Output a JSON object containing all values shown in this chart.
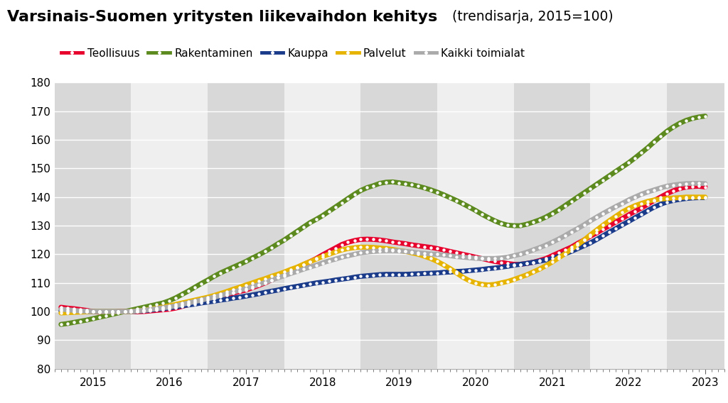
{
  "title_bold": "Varsinais-Suomen yritysten liikevaihdon kehitys",
  "title_normal": " (trendisarja, 2015=100)",
  "legend_labels": [
    "Teollisuus",
    "Rakentaminen",
    "Kauppa",
    "Palvelut",
    "Kaikki toimialat"
  ],
  "line_colors": [
    "#e8002d",
    "#5c8a1e",
    "#1a3a8a",
    "#e6b400",
    "#aaaaaa"
  ],
  "ylim": [
    80,
    180
  ],
  "yticks": [
    80,
    90,
    100,
    110,
    120,
    130,
    140,
    150,
    160,
    170,
    180
  ],
  "bg_color": "#ffffff",
  "stripe_gray": "#d8d8d8",
  "stripe_white": "#efefef",
  "series": {
    "Teollisuus": {
      "x": [
        2014.583,
        2014.667,
        2014.75,
        2014.833,
        2014.917,
        2015.0,
        2015.083,
        2015.167,
        2015.25,
        2015.333,
        2015.417,
        2015.5,
        2015.583,
        2015.667,
        2015.75,
        2015.833,
        2015.917,
        2016.0,
        2016.083,
        2016.167,
        2016.25,
        2016.333,
        2016.417,
        2016.5,
        2016.583,
        2016.667,
        2016.75,
        2016.833,
        2016.917,
        2017.0,
        2017.083,
        2017.167,
        2017.25,
        2017.333,
        2017.417,
        2017.5,
        2017.583,
        2017.667,
        2017.75,
        2017.833,
        2017.917,
        2018.0,
        2018.083,
        2018.167,
        2018.25,
        2018.333,
        2018.417,
        2018.5,
        2018.583,
        2018.667,
        2018.75,
        2018.833,
        2018.917,
        2019.0,
        2019.083,
        2019.167,
        2019.25,
        2019.333,
        2019.417,
        2019.5,
        2019.583,
        2019.667,
        2019.75,
        2019.833,
        2019.917,
        2020.0,
        2020.083,
        2020.167,
        2020.25,
        2020.333,
        2020.417,
        2020.5,
        2020.583,
        2020.667,
        2020.75,
        2020.833,
        2020.917,
        2021.0,
        2021.083,
        2021.167,
        2021.25,
        2021.333,
        2021.417,
        2021.5,
        2021.583,
        2021.667,
        2021.75,
        2021.833,
        2021.917,
        2022.0,
        2022.083,
        2022.167,
        2022.25,
        2022.333,
        2022.417,
        2022.5,
        2022.583,
        2022.667,
        2022.75,
        2022.833,
        2022.917,
        2023.0
      ],
      "y": [
        101.5,
        101.2,
        101.0,
        100.7,
        100.4,
        100.0,
        99.8,
        99.7,
        99.8,
        100.0,
        100.0,
        100.0,
        99.9,
        100.0,
        100.2,
        100.4,
        100.6,
        100.8,
        101.2,
        101.8,
        102.4,
        102.9,
        103.4,
        104.0,
        104.6,
        105.2,
        105.8,
        106.4,
        107.0,
        107.5,
        108.3,
        109.1,
        110.0,
        111.0,
        112.0,
        113.0,
        114.2,
        115.3,
        116.4,
        117.4,
        118.5,
        119.8,
        121.0,
        122.2,
        123.4,
        124.2,
        124.8,
        125.2,
        125.3,
        125.2,
        125.0,
        124.7,
        124.3,
        124.0,
        123.7,
        123.3,
        123.0,
        122.7,
        122.4,
        122.0,
        121.5,
        121.0,
        120.5,
        120.0,
        119.5,
        119.0,
        118.5,
        118.0,
        117.5,
        117.2,
        116.8,
        116.5,
        116.5,
        116.8,
        117.2,
        117.8,
        118.5,
        119.5,
        120.5,
        121.5,
        122.5,
        123.8,
        125.0,
        126.3,
        127.5,
        128.8,
        130.0,
        131.3,
        132.5,
        133.8,
        135.0,
        136.2,
        137.5,
        138.8,
        140.0,
        141.2,
        142.2,
        143.0,
        143.5,
        143.7,
        143.8,
        143.5
      ]
    },
    "Rakentaminen": {
      "x": [
        2014.583,
        2014.667,
        2014.75,
        2014.833,
        2014.917,
        2015.0,
        2015.083,
        2015.167,
        2015.25,
        2015.333,
        2015.417,
        2015.5,
        2015.583,
        2015.667,
        2015.75,
        2015.833,
        2015.917,
        2016.0,
        2016.083,
        2016.167,
        2016.25,
        2016.333,
        2016.417,
        2016.5,
        2016.583,
        2016.667,
        2016.75,
        2016.833,
        2016.917,
        2017.0,
        2017.083,
        2017.167,
        2017.25,
        2017.333,
        2017.417,
        2017.5,
        2017.583,
        2017.667,
        2017.75,
        2017.833,
        2017.917,
        2018.0,
        2018.083,
        2018.167,
        2018.25,
        2018.333,
        2018.417,
        2018.5,
        2018.583,
        2018.667,
        2018.75,
        2018.833,
        2018.917,
        2019.0,
        2019.083,
        2019.167,
        2019.25,
        2019.333,
        2019.417,
        2019.5,
        2019.583,
        2019.667,
        2019.75,
        2019.833,
        2019.917,
        2020.0,
        2020.083,
        2020.167,
        2020.25,
        2020.333,
        2020.417,
        2020.5,
        2020.583,
        2020.667,
        2020.75,
        2020.833,
        2020.917,
        2021.0,
        2021.083,
        2021.167,
        2021.25,
        2021.333,
        2021.417,
        2021.5,
        2021.583,
        2021.667,
        2021.75,
        2021.833,
        2021.917,
        2022.0,
        2022.083,
        2022.167,
        2022.25,
        2022.333,
        2022.417,
        2022.5,
        2022.583,
        2022.667,
        2022.75,
        2022.833,
        2022.917,
        2023.0
      ],
      "y": [
        95.5,
        95.8,
        96.2,
        96.6,
        97.0,
        97.5,
        98.0,
        98.5,
        99.0,
        99.5,
        100.0,
        100.5,
        101.0,
        101.5,
        102.0,
        102.5,
        103.0,
        103.8,
        104.8,
        106.0,
        107.2,
        108.5,
        109.8,
        111.0,
        112.3,
        113.5,
        114.5,
        115.5,
        116.5,
        117.5,
        118.7,
        119.8,
        121.0,
        122.3,
        123.7,
        125.0,
        126.5,
        128.0,
        129.5,
        131.0,
        132.2,
        133.5,
        135.0,
        136.5,
        138.0,
        139.5,
        141.0,
        142.3,
        143.3,
        144.0,
        144.8,
        145.2,
        145.3,
        145.0,
        144.7,
        144.3,
        143.8,
        143.2,
        142.5,
        141.7,
        140.8,
        139.8,
        138.8,
        137.7,
        136.5,
        135.3,
        134.0,
        132.8,
        131.7,
        130.8,
        130.2,
        130.0,
        130.0,
        130.5,
        131.2,
        132.0,
        133.0,
        134.2,
        135.5,
        137.0,
        138.5,
        140.0,
        141.5,
        143.0,
        144.5,
        146.0,
        147.5,
        149.0,
        150.5,
        152.0,
        153.7,
        155.5,
        157.3,
        159.3,
        161.2,
        163.0,
        164.5,
        165.8,
        166.8,
        167.5,
        168.0,
        168.3
      ]
    },
    "Kauppa": {
      "x": [
        2014.583,
        2014.667,
        2014.75,
        2014.833,
        2014.917,
        2015.0,
        2015.083,
        2015.167,
        2015.25,
        2015.333,
        2015.417,
        2015.5,
        2015.583,
        2015.667,
        2015.75,
        2015.833,
        2015.917,
        2016.0,
        2016.083,
        2016.167,
        2016.25,
        2016.333,
        2016.417,
        2016.5,
        2016.583,
        2016.667,
        2016.75,
        2016.833,
        2016.917,
        2017.0,
        2017.083,
        2017.167,
        2017.25,
        2017.333,
        2017.417,
        2017.5,
        2017.583,
        2017.667,
        2017.75,
        2017.833,
        2017.917,
        2018.0,
        2018.083,
        2018.167,
        2018.25,
        2018.333,
        2018.417,
        2018.5,
        2018.583,
        2018.667,
        2018.75,
        2018.833,
        2018.917,
        2019.0,
        2019.083,
        2019.167,
        2019.25,
        2019.333,
        2019.417,
        2019.5,
        2019.583,
        2019.667,
        2019.75,
        2019.833,
        2019.917,
        2020.0,
        2020.083,
        2020.167,
        2020.25,
        2020.333,
        2020.417,
        2020.5,
        2020.583,
        2020.667,
        2020.75,
        2020.833,
        2020.917,
        2021.0,
        2021.083,
        2021.167,
        2021.25,
        2021.333,
        2021.417,
        2021.5,
        2021.583,
        2021.667,
        2021.75,
        2021.833,
        2021.917,
        2022.0,
        2022.083,
        2022.167,
        2022.25,
        2022.333,
        2022.417,
        2022.5,
        2022.583,
        2022.667,
        2022.75,
        2022.833,
        2022.917,
        2023.0
      ],
      "y": [
        100.2,
        100.1,
        100.0,
        100.0,
        100.0,
        100.0,
        100.0,
        100.0,
        100.0,
        100.0,
        100.0,
        100.0,
        100.1,
        100.3,
        100.5,
        100.8,
        101.0,
        101.3,
        101.6,
        102.0,
        102.3,
        102.6,
        103.0,
        103.3,
        103.6,
        104.0,
        104.3,
        104.7,
        105.0,
        105.4,
        105.8,
        106.2,
        106.7,
        107.1,
        107.5,
        108.0,
        108.4,
        108.8,
        109.2,
        109.6,
        110.0,
        110.3,
        110.6,
        111.0,
        111.3,
        111.6,
        112.0,
        112.3,
        112.5,
        112.7,
        112.9,
        113.0,
        113.0,
        113.0,
        113.0,
        113.1,
        113.2,
        113.3,
        113.4,
        113.5,
        113.7,
        113.8,
        114.0,
        114.1,
        114.3,
        114.5,
        114.7,
        115.0,
        115.2,
        115.5,
        115.8,
        116.2,
        116.5,
        116.8,
        117.2,
        117.6,
        118.0,
        118.5,
        119.3,
        120.2,
        121.0,
        122.0,
        123.0,
        124.0,
        125.2,
        126.5,
        127.8,
        129.0,
        130.3,
        131.5,
        132.8,
        134.0,
        135.3,
        136.5,
        137.5,
        138.3,
        138.8,
        139.2,
        139.5,
        139.7,
        139.8,
        139.8
      ]
    },
    "Palvelut": {
      "x": [
        2014.583,
        2014.667,
        2014.75,
        2014.833,
        2014.917,
        2015.0,
        2015.083,
        2015.167,
        2015.25,
        2015.333,
        2015.417,
        2015.5,
        2015.583,
        2015.667,
        2015.75,
        2015.833,
        2015.917,
        2016.0,
        2016.083,
        2016.167,
        2016.25,
        2016.333,
        2016.417,
        2016.5,
        2016.583,
        2016.667,
        2016.75,
        2016.833,
        2016.917,
        2017.0,
        2017.083,
        2017.167,
        2017.25,
        2017.333,
        2017.417,
        2017.5,
        2017.583,
        2017.667,
        2017.75,
        2017.833,
        2017.917,
        2018.0,
        2018.083,
        2018.167,
        2018.25,
        2018.333,
        2018.417,
        2018.5,
        2018.583,
        2018.667,
        2018.75,
        2018.833,
        2018.917,
        2019.0,
        2019.083,
        2019.167,
        2019.25,
        2019.333,
        2019.417,
        2019.5,
        2019.583,
        2019.667,
        2019.75,
        2019.833,
        2019.917,
        2020.0,
        2020.083,
        2020.167,
        2020.25,
        2020.333,
        2020.417,
        2020.5,
        2020.583,
        2020.667,
        2020.75,
        2020.833,
        2020.917,
        2021.0,
        2021.083,
        2021.167,
        2021.25,
        2021.333,
        2021.417,
        2021.5,
        2021.583,
        2021.667,
        2021.75,
        2021.833,
        2021.917,
        2022.0,
        2022.083,
        2022.167,
        2022.25,
        2022.333,
        2022.417,
        2022.5,
        2022.583,
        2022.667,
        2022.75,
        2022.833,
        2022.917,
        2023.0
      ],
      "y": [
        99.5,
        99.6,
        99.7,
        99.8,
        99.9,
        100.0,
        100.0,
        100.0,
        100.0,
        100.0,
        100.0,
        100.0,
        100.2,
        100.5,
        100.8,
        101.2,
        101.6,
        102.0,
        102.5,
        103.0,
        103.5,
        104.0,
        104.5,
        105.0,
        105.6,
        106.3,
        107.0,
        107.8,
        108.5,
        109.3,
        110.0,
        110.8,
        111.5,
        112.3,
        113.0,
        113.8,
        114.7,
        115.5,
        116.5,
        117.4,
        118.3,
        119.2,
        120.0,
        120.8,
        121.5,
        122.0,
        122.3,
        122.5,
        122.5,
        122.4,
        122.2,
        122.0,
        121.7,
        121.3,
        121.0,
        120.5,
        120.0,
        119.3,
        118.5,
        117.5,
        116.3,
        115.0,
        113.5,
        112.0,
        110.8,
        110.0,
        109.5,
        109.3,
        109.5,
        110.0,
        110.5,
        111.2,
        112.0,
        112.8,
        113.8,
        114.8,
        116.0,
        117.3,
        118.7,
        120.2,
        121.8,
        123.3,
        125.0,
        126.8,
        128.5,
        130.2,
        131.8,
        133.3,
        134.8,
        136.0,
        137.0,
        137.8,
        138.5,
        139.0,
        139.3,
        139.5,
        139.7,
        139.8,
        140.0,
        140.0,
        140.0,
        140.0
      ]
    },
    "Kaikki toimialat": {
      "x": [
        2014.583,
        2014.667,
        2014.75,
        2014.833,
        2014.917,
        2015.0,
        2015.083,
        2015.167,
        2015.25,
        2015.333,
        2015.417,
        2015.5,
        2015.583,
        2015.667,
        2015.75,
        2015.833,
        2015.917,
        2016.0,
        2016.083,
        2016.167,
        2016.25,
        2016.333,
        2016.417,
        2016.5,
        2016.583,
        2016.667,
        2016.75,
        2016.833,
        2016.917,
        2017.0,
        2017.083,
        2017.167,
        2017.25,
        2017.333,
        2017.417,
        2017.5,
        2017.583,
        2017.667,
        2017.75,
        2017.833,
        2017.917,
        2018.0,
        2018.083,
        2018.167,
        2018.25,
        2018.333,
        2018.417,
        2018.5,
        2018.583,
        2018.667,
        2018.75,
        2018.833,
        2018.917,
        2019.0,
        2019.083,
        2019.167,
        2019.25,
        2019.333,
        2019.417,
        2019.5,
        2019.583,
        2019.667,
        2019.75,
        2019.833,
        2019.917,
        2020.0,
        2020.083,
        2020.167,
        2020.25,
        2020.333,
        2020.417,
        2020.5,
        2020.583,
        2020.667,
        2020.75,
        2020.833,
        2020.917,
        2021.0,
        2021.083,
        2021.167,
        2021.25,
        2021.333,
        2021.417,
        2021.5,
        2021.583,
        2021.667,
        2021.75,
        2021.833,
        2021.917,
        2022.0,
        2022.083,
        2022.167,
        2022.25,
        2022.333,
        2022.417,
        2022.5,
        2022.583,
        2022.667,
        2022.75,
        2022.833,
        2022.917,
        2023.0
      ],
      "y": [
        100.8,
        100.6,
        100.4,
        100.2,
        100.1,
        100.0,
        100.0,
        100.0,
        100.0,
        100.0,
        100.0,
        100.0,
        100.2,
        100.4,
        100.7,
        101.0,
        101.3,
        101.6,
        102.0,
        102.5,
        103.0,
        103.5,
        104.0,
        104.5,
        105.0,
        105.6,
        106.2,
        106.8,
        107.4,
        108.0,
        108.7,
        109.4,
        110.2,
        111.0,
        111.8,
        112.5,
        113.3,
        114.0,
        114.8,
        115.5,
        116.2,
        117.0,
        117.7,
        118.3,
        119.0,
        119.5,
        120.0,
        120.5,
        120.8,
        121.0,
        121.2,
        121.3,
        121.3,
        121.2,
        121.0,
        120.8,
        120.5,
        120.3,
        120.1,
        120.0,
        119.8,
        119.5,
        119.2,
        119.0,
        118.8,
        118.6,
        118.5,
        118.5,
        118.5,
        118.7,
        119.0,
        119.5,
        120.0,
        120.7,
        121.5,
        122.3,
        123.2,
        124.2,
        125.3,
        126.5,
        127.8,
        129.0,
        130.3,
        131.7,
        133.0,
        134.3,
        135.5,
        136.7,
        137.8,
        139.0,
        140.0,
        141.0,
        141.8,
        142.5,
        143.2,
        143.8,
        144.2,
        144.5,
        144.7,
        144.8,
        144.8,
        144.7
      ]
    }
  }
}
